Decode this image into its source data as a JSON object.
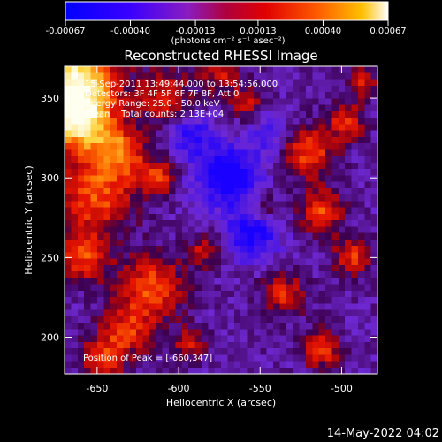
{
  "chart_data": {
    "type": "heatmap",
    "title": "Reconstructed RHESSI Image",
    "xlabel": "Heliocentric X (arcsec)",
    "ylabel": "Heliocentric Y (arcsec)",
    "xlim": [
      -670,
      -478
    ],
    "ylim": [
      177,
      370
    ],
    "x_ticks": [
      -650,
      -600,
      -550,
      -500
    ],
    "y_ticks": [
      200,
      250,
      300,
      350
    ],
    "colorbar": {
      "label": "(photons cm⁻² s⁻¹ asec⁻²)",
      "ticks": [
        "-0.00067",
        "-0.00040",
        "-0.00013",
        "0.00013",
        "0.00040",
        "0.00067"
      ],
      "tick_values": [
        -0.00067,
        -0.0004,
        -0.00013,
        0.00013,
        0.0004,
        0.00067
      ],
      "range": [
        -0.00067,
        0.00067
      ]
    },
    "annotations": {
      "time_range": "15-Sep-2011 13:49:44.000 to 13:54:56.000",
      "detectors": "Detectors: 3F 4F 5F 6F 7F 8F, Att 0",
      "energy_range": "Energy Range: 25.0 - 50.0 keV",
      "method_counts": "Clean    Total counts: 2.13E+04",
      "peak_position": "Position of Peak = [-660,347]"
    },
    "footer_date": "14-May-2022 04:02",
    "colors": {
      "background": "#000000",
      "low": "#1a00ff",
      "mid_low": "#7a22c8",
      "mid": "#b0002a",
      "high": "#ff3a00",
      "peak": "#fffff0"
    }
  }
}
